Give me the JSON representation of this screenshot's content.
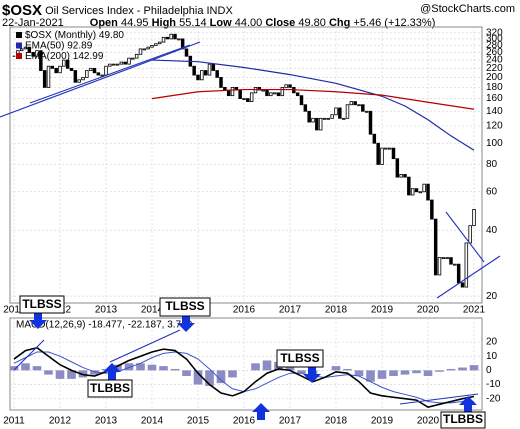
{
  "header": {
    "symbol": "$OSX",
    "name": "Oil Services Index - Philadelphia INDX",
    "date": "22-Jan-2021",
    "quote": [
      {
        "label": "Open",
        "value": "44.95"
      },
      {
        "label": "High",
        "value": "55.14"
      },
      {
        "label": "Low",
        "value": "44.00"
      },
      {
        "label": "Close",
        "value": "49.80"
      },
      {
        "label": "Chg",
        "value": "+5.46 (+12.33%)"
      }
    ],
    "source": "@StockCharts.com"
  },
  "annotations": [
    "TLBSS",
    "TLBSS",
    "TLBSS",
    "TLBBS",
    "TLBBS"
  ],
  "chart_data": [
    {
      "type": "candlestick",
      "series": [
        {
          "name": "$OSX (Monthly)",
          "legend_value": "49.80",
          "color": "#000000",
          "values": [
            250,
            265,
            270,
            275,
            260,
            250,
            265,
            215,
            180,
            225,
            220,
            210,
            225,
            240,
            220,
            215,
            190,
            195,
            200,
            215,
            220,
            210,
            205,
            205,
            225,
            230,
            230,
            230,
            235,
            230,
            245,
            245,
            255,
            270,
            270,
            275,
            280,
            285,
            290,
            305,
            300,
            315,
            300,
            300,
            270,
            250,
            225,
            205,
            195,
            215,
            205,
            230,
            215,
            200,
            180,
            175,
            165,
            180,
            175,
            160,
            160,
            155,
            170,
            180,
            175,
            175,
            165,
            170,
            170,
            165,
            180,
            185,
            180,
            170,
            165,
            150,
            140,
            125,
            130,
            115,
            130,
            130,
            130,
            135,
            145,
            130,
            130,
            150,
            155,
            150,
            150,
            140,
            140,
            110,
            100,
            80,
            95,
            95,
            95,
            85,
            70,
            72,
            70,
            58,
            62,
            60,
            60,
            65,
            55,
            45,
            25,
            30,
            30,
            30,
            28,
            28,
            23,
            22,
            35,
            42,
            49.8
          ]
        },
        {
          "name": "EMA(50)",
          "legend_value": "92.89",
          "color": "#1f2aa8",
          "x": [
            2014,
            2015,
            2016,
            2017,
            2018,
            2019,
            2019.5,
            2020,
            2020.5,
            2021
          ],
          "values": [
            240,
            236,
            222,
            206,
            188,
            164,
            148,
            128,
            108,
            92.89
          ]
        },
        {
          "name": "EMA(200)",
          "legend_value": "142.99",
          "color": "#b30000",
          "x": [
            2014,
            2015,
            2016,
            2017,
            2018,
            2019,
            2020,
            2021
          ],
          "values": [
            160,
            172,
            176,
            176,
            172,
            166,
            154,
            142.99
          ]
        }
      ],
      "log_scale": true,
      "ylim": [
        19,
        340
      ],
      "yticks": [
        20,
        40,
        60,
        80,
        100,
        120,
        140,
        160,
        180,
        200,
        220,
        240,
        260,
        280,
        300,
        320
      ],
      "xticks": [
        2011,
        2012,
        2013,
        2014,
        2015,
        2016,
        2017,
        2018,
        2019,
        2020,
        2021
      ],
      "grid": true
    },
    {
      "type": "macd",
      "label": "MACD(12,26,9) -18.477, -22.187, 3.710",
      "series": [
        {
          "name": "MACD",
          "color": "#000000",
          "values": [
            8,
            14,
            16,
            10,
            4,
            0,
            -3,
            -4,
            -1,
            3,
            7,
            10,
            13,
            15,
            14,
            8,
            -2,
            -10,
            -16,
            -18,
            -15,
            -8,
            -2,
            1,
            0,
            -4,
            -8,
            -5,
            -1,
            -2,
            -8,
            -16,
            -18,
            -19,
            -20,
            -21,
            -26,
            -24,
            -22,
            -20,
            -18.477
          ]
        },
        {
          "name": "Signal",
          "color": "#3b55cc",
          "values": [
            5,
            9,
            13,
            13,
            10,
            6,
            2,
            -1,
            -2,
            -1,
            2,
            5,
            9,
            12,
            13,
            12,
            8,
            1,
            -7,
            -13,
            -15,
            -13,
            -9,
            -5,
            -2,
            -2,
            -4,
            -5,
            -4,
            -3,
            -4,
            -8,
            -12,
            -15,
            -17,
            -19,
            -22,
            -23,
            -23,
            -22,
            -22.187
          ]
        },
        {
          "name": "Histogram",
          "color": "#8c8cc4",
          "values": [
            3,
            5,
            3,
            -3,
            -6,
            -6,
            -5,
            -3,
            1,
            4,
            5,
            5,
            4,
            3,
            1,
            -4,
            -10,
            -11,
            -9,
            -5,
            0,
            5,
            7,
            6,
            2,
            -2,
            -4,
            0,
            3,
            1,
            -4,
            -8,
            -6,
            -4,
            -3,
            -2,
            -4,
            -1,
            1,
            2,
            3.71
          ]
        }
      ],
      "ylim": [
        -28,
        37
      ],
      "yticks": [
        -20,
        -10,
        0,
        10,
        20
      ],
      "xticks": [
        2011,
        2012,
        2013,
        2014,
        2015,
        2016,
        2017,
        2018,
        2019,
        2020,
        2021
      ],
      "grid": true
    }
  ]
}
